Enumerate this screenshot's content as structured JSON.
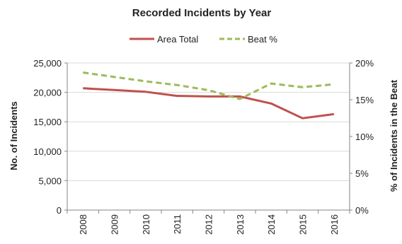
{
  "chart_data": {
    "type": "line",
    "title": "Recorded Incidents by Year",
    "xlabel": "",
    "ylabel": "No. of Incidents",
    "y2label": "% of Incidents in the Beat",
    "categories": [
      "2008",
      "2009",
      "2010",
      "2011",
      "2012",
      "2013",
      "2014",
      "2015",
      "2016"
    ],
    "ylim": [
      0,
      25000
    ],
    "y2lim": [
      0,
      20
    ],
    "y_ticks": [
      "0",
      "5,000",
      "10,000",
      "15,000",
      "20,000",
      "25,000"
    ],
    "y2_ticks": [
      "0%",
      "5%",
      "10%",
      "15%",
      "20%"
    ],
    "grid": true,
    "legend_position": "top",
    "series": [
      {
        "name": "Area Total",
        "axis": "left",
        "style": "solid",
        "color": "#c0504d",
        "values": [
          20700,
          20400,
          20100,
          19400,
          19300,
          19300,
          18100,
          15600,
          16300
        ]
      },
      {
        "name": "Beat %",
        "axis": "right",
        "style": "dashed",
        "color": "#9bbb59",
        "values": [
          18.7,
          18.1,
          17.5,
          17.0,
          16.3,
          15.1,
          17.2,
          16.7,
          17.1
        ]
      }
    ]
  }
}
